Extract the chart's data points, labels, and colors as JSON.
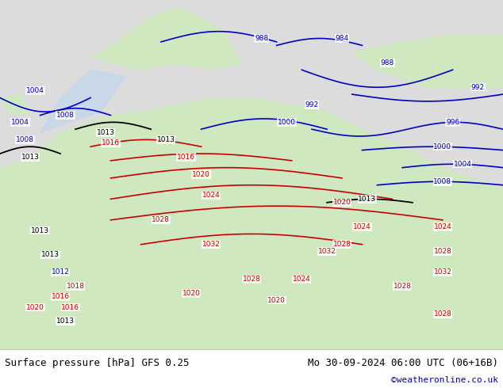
{
  "title_left": "Surface pressure [hPa] GFS 0.25",
  "title_right": "Mo 30-09-2024 06:00 UTC (06+16B)",
  "credit": "©weatheronline.co.uk",
  "bg_color": "#e8e8e8",
  "land_color": "#d0e8c0",
  "sea_color": "#e0e8f0",
  "blue_contour_color": "#0000cc",
  "red_contour_color": "#cc0000",
  "black_contour_color": "#000000",
  "bottom_bar_color": "#ffffff",
  "title_font_size": 10,
  "credit_color": "#0000cc"
}
